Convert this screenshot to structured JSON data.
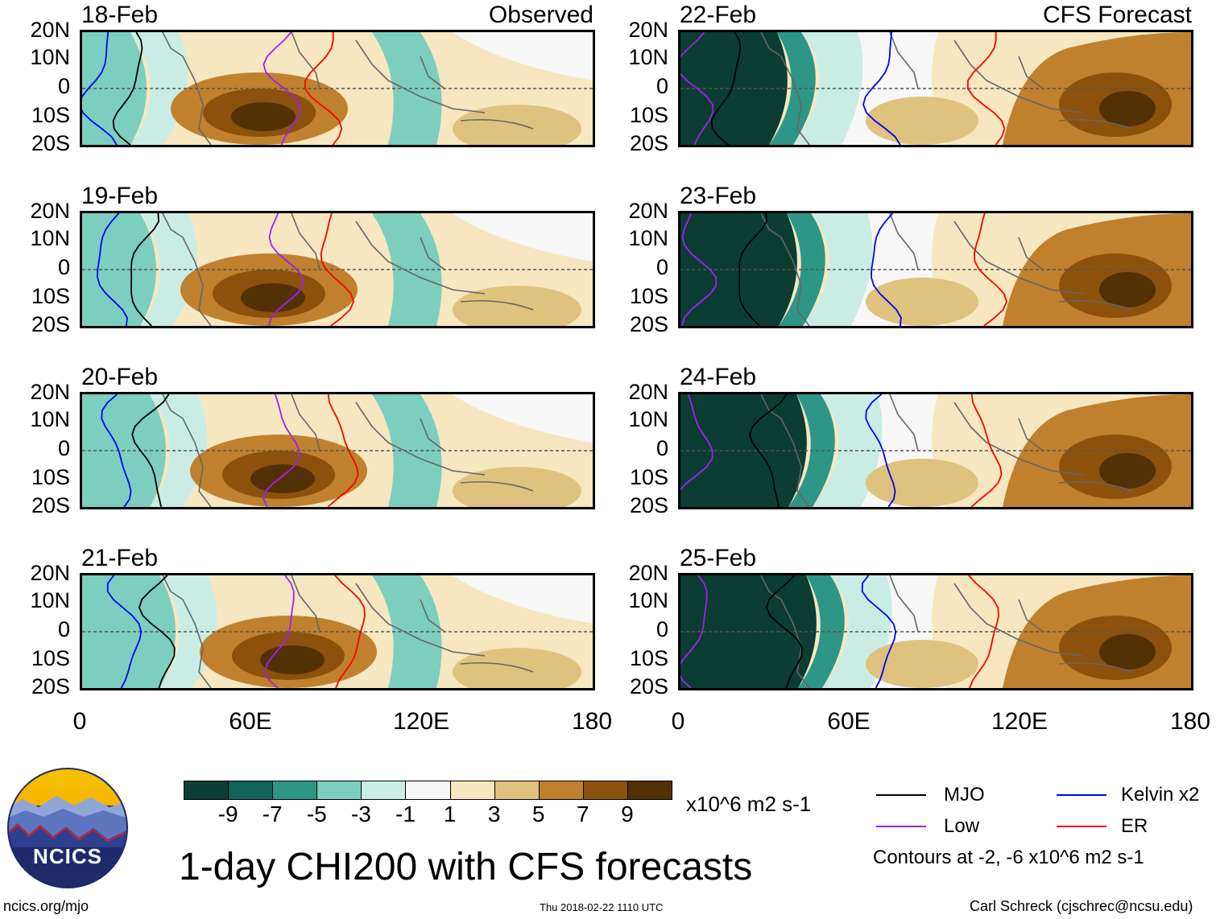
{
  "headers": {
    "observed": "Observed",
    "forecast": "CFS Forecast"
  },
  "panels_left": [
    {
      "date": "18-Feb"
    },
    {
      "date": "19-Feb"
    },
    {
      "date": "20-Feb"
    },
    {
      "date": "21-Feb"
    }
  ],
  "panels_right": [
    {
      "date": "22-Feb"
    },
    {
      "date": "23-Feb"
    },
    {
      "date": "24-Feb"
    },
    {
      "date": "25-Feb"
    }
  ],
  "lat_labels": [
    "20N",
    "10N",
    "0",
    "10S",
    "20S"
  ],
  "lon_labels": [
    "0",
    "60E",
    "120E",
    "180"
  ],
  "colorbar": {
    "colors": [
      "#0b3d33",
      "#0f6358",
      "#2e9686",
      "#7ccfbf",
      "#c9ede5",
      "#f7f7f7",
      "#f6e7c1",
      "#dfc27d",
      "#bf812d",
      "#8c510a",
      "#543005"
    ],
    "ticks": [
      "-9",
      "-7",
      "-5",
      "-3",
      "-1",
      "1",
      "3",
      "5",
      "7",
      "9"
    ],
    "units": "x10^6 m2 s-1"
  },
  "title": "1-day CHI200 with CFS forecasts",
  "logo": {
    "text": "NCICS"
  },
  "legend": {
    "items": [
      {
        "label": "MJO",
        "color": "#000000"
      },
      {
        "label": "Kelvin x2",
        "color": "#0000ff"
      },
      {
        "label": "Low",
        "color": "#a020f0"
      },
      {
        "label": "ER",
        "color": "#ff0000"
      }
    ],
    "contours_note": "Contours at -2, -6 x10^6 m2 s-1"
  },
  "footer": {
    "url": "ncics.org/mjo",
    "timestamp": "Thu 2018-02-22 1110 UTC",
    "credit": "Carl Schreck (cjschrec@ncsu.edu)"
  }
}
